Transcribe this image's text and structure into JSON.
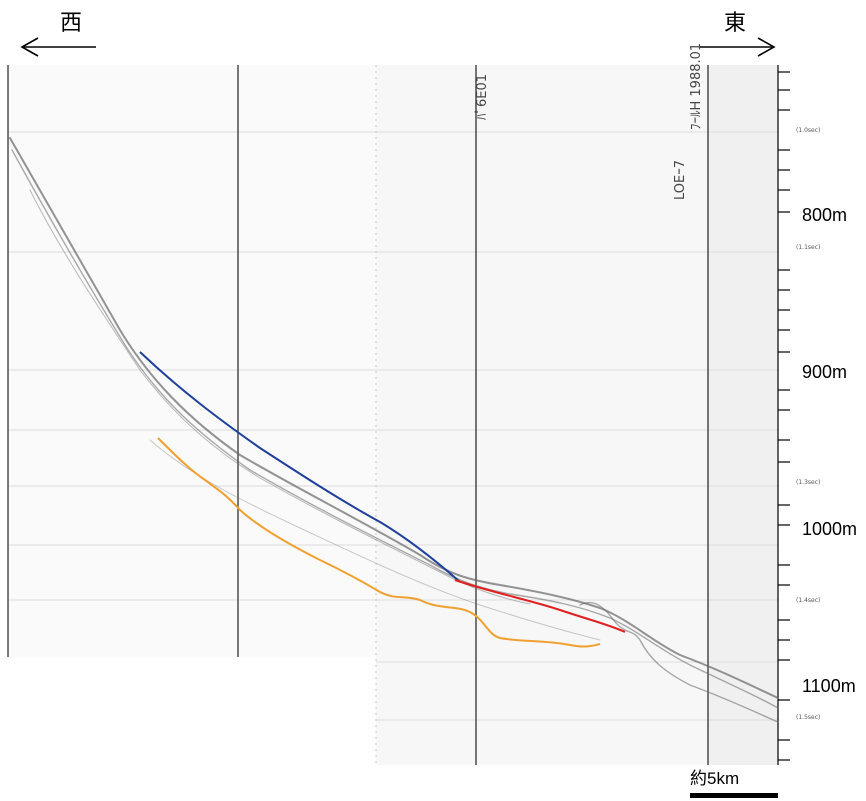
{
  "direction": {
    "west": "西",
    "east": "東"
  },
  "depth_labels": [
    "800m",
    "900m",
    "1000m",
    "1100m"
  ],
  "time_labels": [
    "(1.0sec)",
    "(1.1sec)",
    "(1.3sec)",
    "(1.4sec)",
    "(1.5sec)"
  ],
  "annotations": {
    "line_a": "ﾊﾟ6E01",
    "line_b": "ﾌｰﾙH 1988.01",
    "line_c": "LOEｰ7"
  },
  "scale_bar": {
    "label": "約5km"
  },
  "colors": {
    "blue_line": "#1f3f9a",
    "red_line": "#e02020",
    "orange_line": "#f0a030",
    "grid_line": "#d8d8d8",
    "vertical_line": "#222222",
    "seafloor": "#555555"
  }
}
